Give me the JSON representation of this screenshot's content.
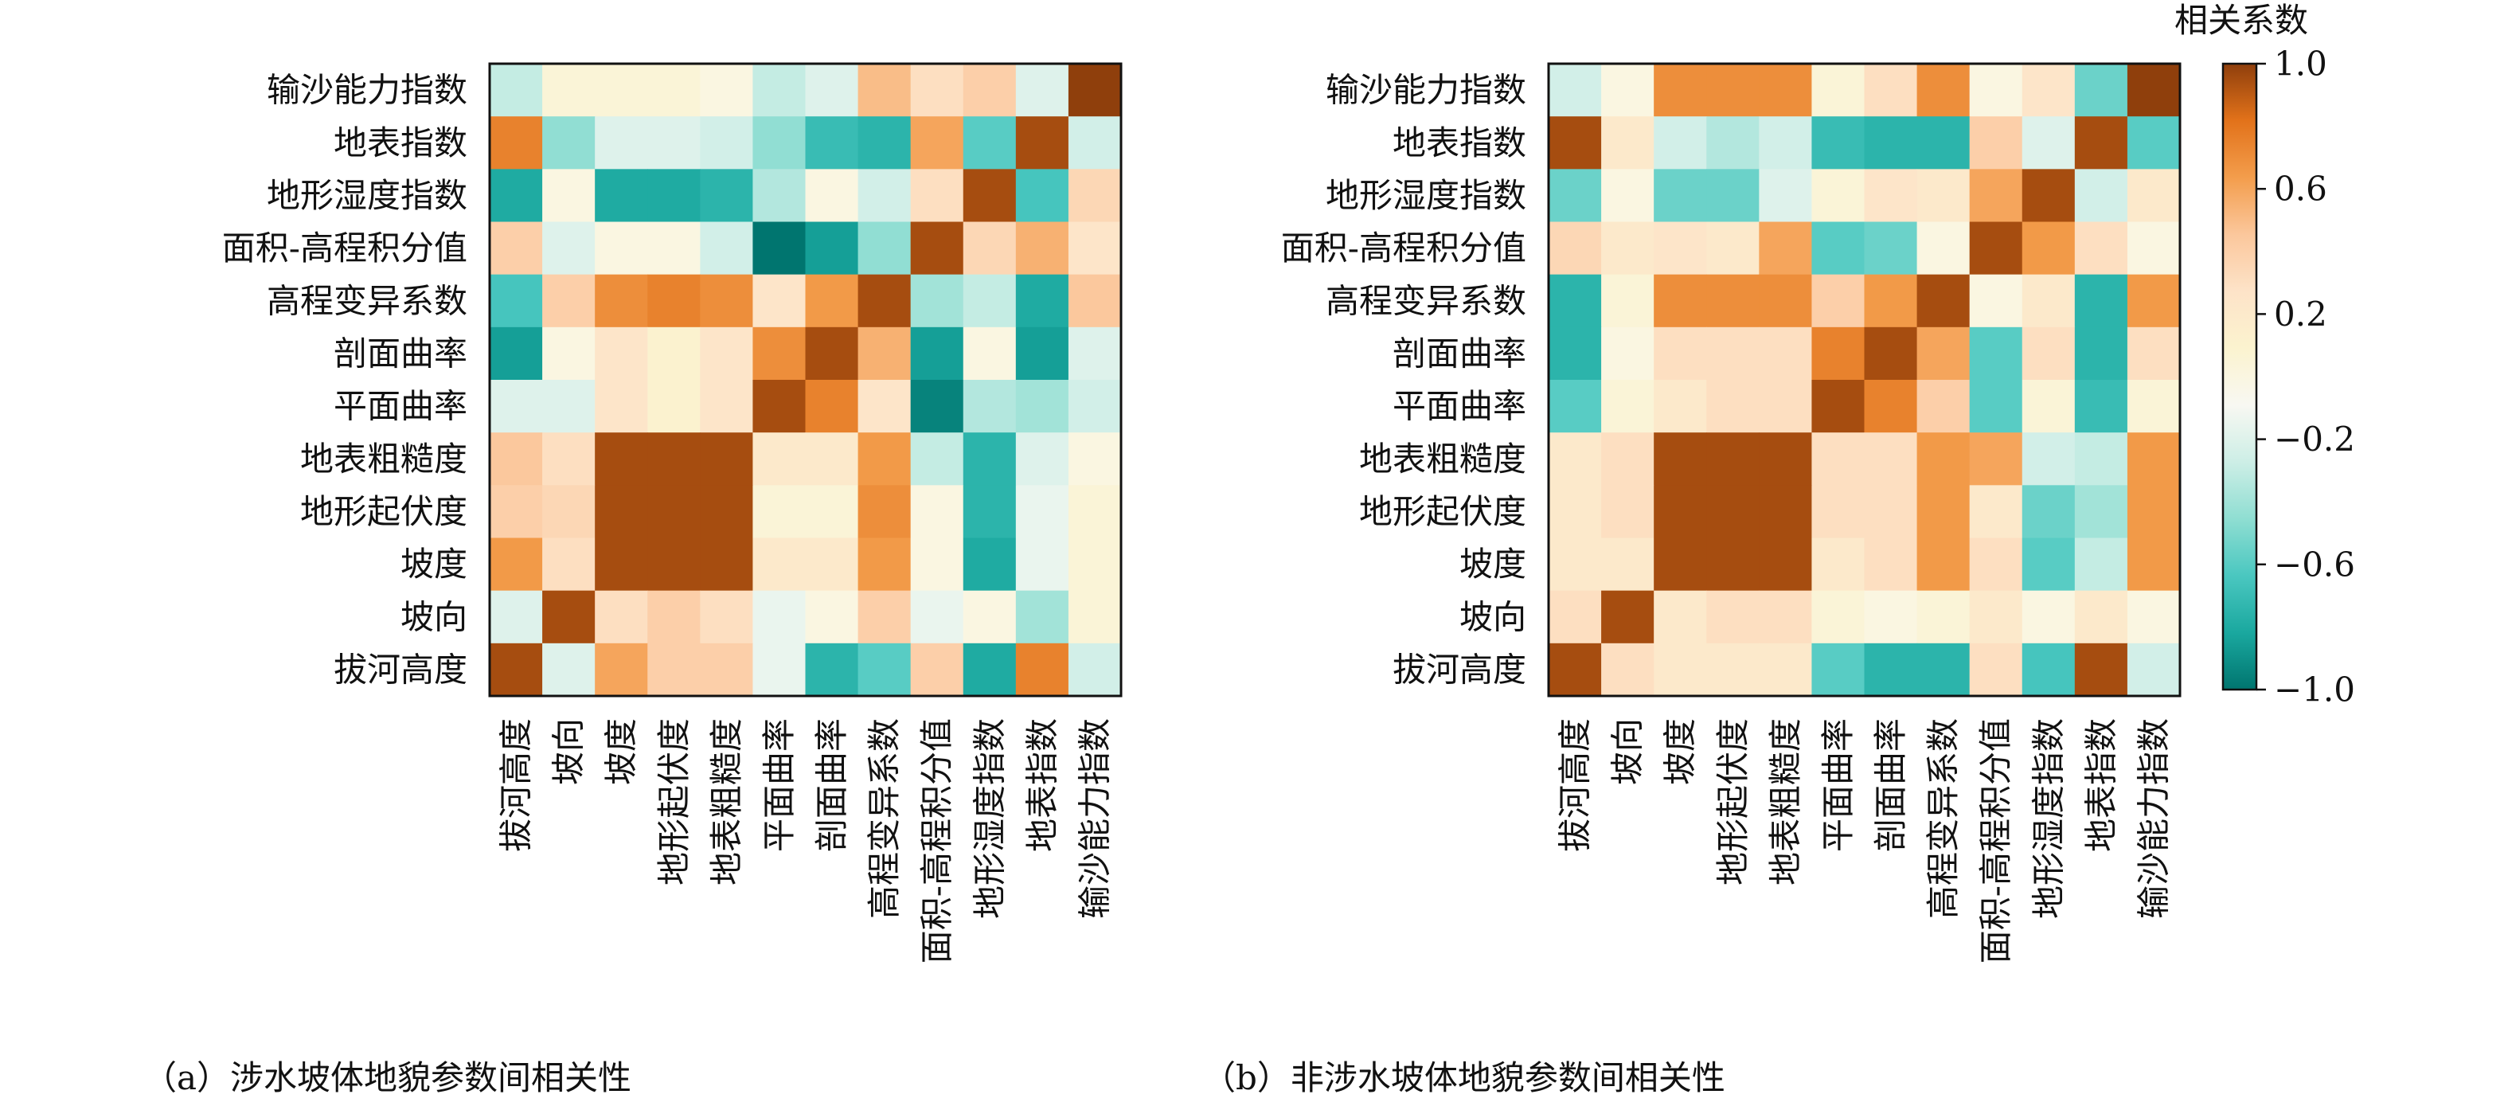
{
  "figure": {
    "caption_a": "（a）涉水坡体地貌参数间相关性",
    "caption_b": "（b）非涉水坡体地貌参数间相关性"
  },
  "colorbar": {
    "title": "相关系数",
    "ticks": [
      {
        "value": 1.0,
        "label": "1.0"
      },
      {
        "value": 0.6,
        "label": "0.6"
      },
      {
        "value": 0.2,
        "label": "0.2"
      },
      {
        "value": -0.2,
        "label": "−0.2"
      },
      {
        "value": -0.6,
        "label": "−0.6"
      },
      {
        "value": -1.0,
        "label": "−1.0"
      }
    ],
    "colors": [
      "#00756f",
      "#1aa89f",
      "#4ac7c0",
      "#8fded2",
      "#cdeee6",
      "#f8f8f2",
      "#fbf3cf",
      "#fde3c8",
      "#fbc79c",
      "#f39d4c",
      "#e2721a",
      "#8f3f0c"
    ]
  },
  "chart_data": [
    {
      "type": "heatmap",
      "title": "",
      "caption": "（a）涉水坡体地貌参数间相关性",
      "x_categories": [
        "拔河高度",
        "坡向",
        "坡度",
        "地形起伏度",
        "地表粗糙度",
        "平面曲率",
        "剖面曲率",
        "高程变异系数",
        "面积-高程积分值",
        "地形湿度指数",
        "地表指数",
        "输沙能力指数"
      ],
      "y_categories": [
        "输沙能力指数",
        "地表指数",
        "地形湿度指数",
        "面积-高程积分值",
        "高程变异系数",
        "剖面曲率",
        "平面曲率",
        "地表粗糙度",
        "地形起伏度",
        "坡度",
        "坡向",
        "拔河高度"
      ],
      "values": [
        [
          -0.3,
          0.05,
          0.05,
          0.05,
          0.0,
          -0.3,
          -0.2,
          0.5,
          0.3,
          0.4,
          -0.2,
          1.0
        ],
        [
          0.75,
          -0.45,
          -0.2,
          -0.2,
          -0.25,
          -0.45,
          -0.7,
          -0.75,
          0.6,
          -0.6,
          0.95,
          -0.25
        ],
        [
          -0.8,
          0.0,
          -0.8,
          -0.8,
          -0.75,
          -0.35,
          0.0,
          -0.25,
          0.3,
          0.95,
          -0.65,
          0.35
        ],
        [
          0.4,
          -0.2,
          0.0,
          0.0,
          -0.25,
          -1.0,
          -0.85,
          -0.45,
          0.95,
          0.35,
          0.55,
          0.25
        ],
        [
          -0.65,
          0.4,
          0.7,
          0.75,
          0.7,
          0.25,
          0.65,
          0.95,
          -0.4,
          -0.3,
          -0.8,
          0.45
        ],
        [
          -0.85,
          0.0,
          0.25,
          0.1,
          0.25,
          0.7,
          0.95,
          0.55,
          -0.85,
          0.0,
          -0.85,
          -0.2
        ],
        [
          -0.2,
          -0.2,
          0.25,
          0.1,
          0.25,
          0.95,
          0.75,
          0.25,
          -0.95,
          -0.35,
          -0.4,
          -0.25
        ],
        [
          0.45,
          0.3,
          0.95,
          0.95,
          0.95,
          0.2,
          0.2,
          0.65,
          -0.3,
          -0.75,
          -0.2,
          0.0
        ],
        [
          0.4,
          0.35,
          0.95,
          0.95,
          0.95,
          0.05,
          0.05,
          0.7,
          0.0,
          -0.75,
          -0.15,
          0.05
        ],
        [
          0.65,
          0.3,
          0.95,
          0.95,
          0.95,
          0.2,
          0.2,
          0.65,
          0.0,
          -0.8,
          -0.15,
          0.05
        ],
        [
          -0.2,
          0.95,
          0.3,
          0.4,
          0.3,
          -0.15,
          0.0,
          0.4,
          -0.15,
          0.0,
          -0.4,
          0.05
        ],
        [
          0.95,
          -0.2,
          0.6,
          0.4,
          0.4,
          -0.15,
          -0.75,
          -0.6,
          0.4,
          -0.8,
          0.75,
          -0.25
        ]
      ],
      "zlim": [
        -1.0,
        1.0
      ],
      "colorbar_title": "相关系数"
    },
    {
      "type": "heatmap",
      "title": "",
      "caption": "（b）非涉水坡体地貌参数间相关性",
      "x_categories": [
        "拔河高度",
        "坡向",
        "坡度",
        "地形起伏度",
        "地表粗糙度",
        "平面曲率",
        "剖面曲率",
        "高程变异系数",
        "面积-高程积分值",
        "地形湿度指数",
        "地表指数",
        "输沙能力指数"
      ],
      "y_categories": [
        "输沙能力指数",
        "地表指数",
        "地形湿度指数",
        "面积-高程积分值",
        "高程变异系数",
        "剖面曲率",
        "平面曲率",
        "地表粗糙度",
        "地形起伏度",
        "坡度",
        "坡向",
        "拔河高度"
      ],
      "values": [
        [
          -0.25,
          0.0,
          0.7,
          0.7,
          0.7,
          0.05,
          0.3,
          0.7,
          0.0,
          0.25,
          -0.55,
          1.0
        ],
        [
          0.95,
          0.2,
          -0.25,
          -0.35,
          -0.25,
          -0.7,
          -0.75,
          -0.75,
          0.4,
          -0.2,
          0.95,
          -0.6
        ],
        [
          -0.55,
          0.0,
          -0.55,
          -0.55,
          -0.2,
          0.05,
          0.25,
          0.2,
          0.6,
          0.95,
          -0.25,
          0.2
        ],
        [
          0.35,
          0.2,
          0.25,
          0.2,
          0.6,
          -0.6,
          -0.55,
          0.0,
          0.95,
          0.65,
          0.3,
          0.0
        ],
        [
          -0.75,
          0.05,
          0.7,
          0.7,
          0.7,
          0.4,
          0.65,
          0.95,
          0.0,
          0.2,
          -0.75,
          0.65
        ],
        [
          -0.75,
          0.0,
          0.3,
          0.3,
          0.3,
          0.75,
          0.95,
          0.6,
          -0.6,
          0.3,
          -0.75,
          0.3
        ],
        [
          -0.6,
          0.05,
          0.2,
          0.3,
          0.3,
          0.95,
          0.75,
          0.4,
          -0.6,
          0.05,
          -0.7,
          0.05
        ],
        [
          0.2,
          0.3,
          0.95,
          0.95,
          0.95,
          0.3,
          0.3,
          0.65,
          0.6,
          -0.25,
          -0.3,
          0.65
        ],
        [
          0.2,
          0.3,
          0.95,
          0.95,
          0.95,
          0.3,
          0.3,
          0.65,
          0.2,
          -0.55,
          -0.4,
          0.65
        ],
        [
          0.2,
          0.2,
          0.95,
          0.95,
          0.95,
          0.2,
          0.3,
          0.65,
          0.3,
          -0.6,
          -0.3,
          0.65
        ],
        [
          0.3,
          0.95,
          0.2,
          0.3,
          0.3,
          0.05,
          0.0,
          0.05,
          0.2,
          0.0,
          0.2,
          0.0
        ],
        [
          0.95,
          0.3,
          0.2,
          0.2,
          0.2,
          -0.6,
          -0.75,
          -0.75,
          0.3,
          -0.65,
          0.95,
          -0.25
        ]
      ],
      "zlim": [
        -1.0,
        1.0
      ],
      "colorbar_title": "相关系数"
    }
  ]
}
